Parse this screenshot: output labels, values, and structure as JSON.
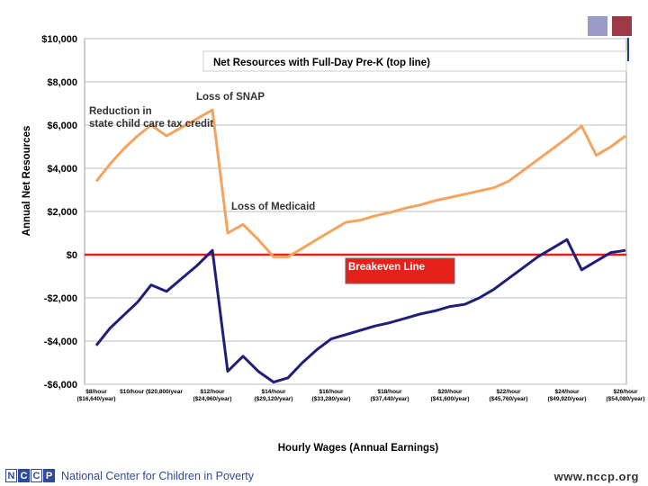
{
  "chart_data": {
    "type": "line",
    "title": "Net Resources with Full-Day Pre-K  (top line)",
    "xlabel": "Hourly Wages (Annual Earnings)",
    "ylabel": "Annual Net Resources",
    "ylim": [
      -6000,
      10000
    ],
    "xlim": [
      8,
      26
    ],
    "yticks": [
      {
        "value": 10000,
        "label": "$10,000"
      },
      {
        "value": 8000,
        "label": "$8,000"
      },
      {
        "value": 6000,
        "label": "$6,000"
      },
      {
        "value": 4000,
        "label": "$4,000"
      },
      {
        "value": 2000,
        "label": "$2,000"
      },
      {
        "value": 0,
        "label": "$0"
      },
      {
        "value": -2000,
        "label": "-$2,000"
      },
      {
        "value": -4000,
        "label": "-$4,000"
      },
      {
        "value": -6000,
        "label": "-$6,000"
      }
    ],
    "xticks": [
      {
        "value": 8,
        "label1": "$8/hour",
        "label2": "($16,640/year)"
      },
      {
        "value": 10,
        "label1": "$10/hour ($20,800/year",
        "label2": ""
      },
      {
        "value": 12,
        "label1": "$12/hour",
        "label2": "($24,960/year)"
      },
      {
        "value": 14,
        "label1": "$14/hour",
        "label2": "($29,120/year)"
      },
      {
        "value": 16,
        "label1": "$16/hour",
        "label2": "($33,280/year)"
      },
      {
        "value": 18,
        "label1": "$18/hour",
        "label2": "($37,440/year)"
      },
      {
        "value": 20,
        "label1": "$20/hour",
        "label2": "($41,600/year)"
      },
      {
        "value": 22,
        "label1": "$22/hour",
        "label2": "($45,760/year)"
      },
      {
        "value": 24,
        "label1": "$24/hour",
        "label2": "($49,920/year)"
      },
      {
        "value": 26,
        "label1": "$26/hour",
        "label2": "($54,080/year)"
      }
    ],
    "series": [
      {
        "name": "Net Resources with Full-Day Pre-K",
        "color": "#f4a45c",
        "points": [
          [
            8,
            3400
          ],
          [
            8.5,
            4200
          ],
          [
            9,
            4900
          ],
          [
            9.5,
            5500
          ],
          [
            10,
            6000
          ],
          [
            10.5,
            5500
          ],
          [
            11,
            5900
          ],
          [
            11.5,
            6300
          ],
          [
            12,
            6700
          ],
          [
            12.5,
            1000
          ],
          [
            13,
            1400
          ],
          [
            13.5,
            700
          ],
          [
            14,
            -100
          ],
          [
            14.5,
            -100
          ],
          [
            15,
            300
          ],
          [
            15.5,
            700
          ],
          [
            16,
            1100
          ],
          [
            16.5,
            1500
          ],
          [
            17,
            1600
          ],
          [
            17.5,
            1800
          ],
          [
            18,
            1950
          ],
          [
            18.5,
            2150
          ],
          [
            19,
            2300
          ],
          [
            19.5,
            2500
          ],
          [
            20,
            2650
          ],
          [
            20.5,
            2800
          ],
          [
            21,
            2950
          ],
          [
            21.5,
            3100
          ],
          [
            22,
            3400
          ],
          [
            22.5,
            3900
          ],
          [
            23,
            4400
          ],
          [
            23.5,
            4900
          ],
          [
            24,
            5400
          ],
          [
            24.5,
            5950
          ],
          [
            25,
            4600
          ],
          [
            25.5,
            5000
          ],
          [
            26,
            5500
          ]
        ]
      },
      {
        "name": "Net Resources (bottom line)",
        "color": "#1f1f7a",
        "points": [
          [
            8,
            -4200
          ],
          [
            8.5,
            -3400
          ],
          [
            9,
            -2800
          ],
          [
            9.5,
            -2200
          ],
          [
            10,
            -1400
          ],
          [
            10.5,
            -1700
          ],
          [
            11,
            -1100
          ],
          [
            11.5,
            -500
          ],
          [
            12,
            200
          ],
          [
            12.5,
            -5400
          ],
          [
            13,
            -4700
          ],
          [
            13.5,
            -5400
          ],
          [
            14,
            -5900
          ],
          [
            14.5,
            -5700
          ],
          [
            15,
            -5000
          ],
          [
            15.5,
            -4400
          ],
          [
            16,
            -3900
          ],
          [
            16.5,
            -3700
          ],
          [
            17,
            -3500
          ],
          [
            17.5,
            -3300
          ],
          [
            18,
            -3150
          ],
          [
            18.5,
            -2950
          ],
          [
            19,
            -2750
          ],
          [
            19.5,
            -2600
          ],
          [
            20,
            -2400
          ],
          [
            20.5,
            -2300
          ],
          [
            21,
            -2000
          ],
          [
            21.5,
            -1600
          ],
          [
            22,
            -1100
          ],
          [
            22.5,
            -600
          ],
          [
            23,
            -100
          ],
          [
            23.5,
            300
          ],
          [
            24,
            700
          ],
          [
            24.5,
            -700
          ],
          [
            25,
            -300
          ],
          [
            25.5,
            100
          ],
          [
            26,
            200
          ]
        ]
      }
    ],
    "breakeven": {
      "value": 0,
      "color": "#e8201a"
    },
    "annotations": [
      {
        "text": "Loss of SNAP"
      },
      {
        "text": "Reduction in"
      },
      {
        "text": "state  child care  tax credit"
      },
      {
        "text": "Loss of Medicaid"
      },
      {
        "text": "Breakeven Line"
      }
    ]
  },
  "footer": {
    "logo_letters": [
      "N",
      "C",
      "C",
      "P"
    ],
    "org_name": "National Center for Children in Poverty",
    "url": "www.nccp.org"
  }
}
